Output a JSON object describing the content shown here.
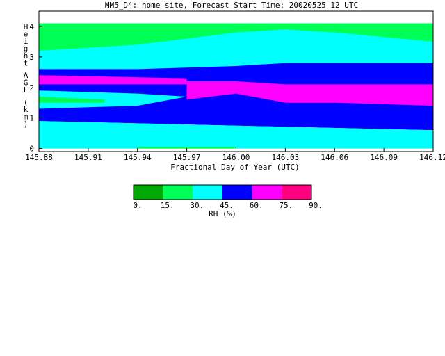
{
  "chart_data": {
    "type": "heatmap",
    "title": "MM5_D4: home site,  Forecast Start Time: 20020525 12 UTC",
    "xlabel": "Fractional Day of Year (UTC)",
    "ylabel": "Height AGL (km)",
    "xlim": [
      145.88,
      146.12
    ],
    "ylim": [
      -0.1,
      4.5
    ],
    "x_ticks": [
      "145.88",
      "145.91",
      "145.94",
      "145.97",
      "146.00",
      "146.03",
      "146.06",
      "146.09",
      "146.12"
    ],
    "y_ticks": [
      "0",
      "1",
      "2",
      "3",
      "4"
    ],
    "colorbar": {
      "label": "RH (%)",
      "ticks": [
        "0.",
        "15.",
        "30.",
        "45.",
        "60.",
        "75.",
        "90."
      ],
      "colors": [
        "#00a800",
        "#00ff55",
        "#00ffff",
        "#0000ff",
        "#ff00ff",
        "#ff0080"
      ]
    },
    "bands": [
      {
        "rh": "45-60",
        "color": "#0000ff",
        "x": [
          145.88,
          146.12
        ],
        "y_bottom": [
          0.9,
          0.6
        ],
        "y_top": [
          4.1,
          4.1
        ]
      },
      {
        "rh": "30-45",
        "color": "#00ffff",
        "x": [
          145.88,
          146.12
        ],
        "y_bottom": [
          0.0,
          0.0
        ],
        "y_top": [
          0.9,
          0.6
        ]
      },
      {
        "rh": "30-45",
        "color": "#00ffff",
        "x": [
          145.88,
          145.94,
          146.0,
          146.03,
          146.06,
          146.12
        ],
        "y_bottom": [
          2.6,
          2.6,
          2.7,
          2.8,
          2.8,
          2.8
        ],
        "y_top": [
          4.1,
          4.1,
          4.1,
          4.1,
          4.1,
          4.1
        ]
      },
      {
        "rh": "15-30",
        "color": "#00ff55",
        "x": [
          145.88,
          145.94,
          146.0,
          146.03,
          146.06,
          146.12
        ],
        "y_bottom": [
          3.2,
          3.4,
          3.8,
          3.9,
          3.8,
          3.5
        ],
        "y_top": [
          4.1,
          4.1,
          4.1,
          4.1,
          4.1,
          4.1
        ]
      },
      {
        "rh": "30-45",
        "color": "#00ffff",
        "x": [
          145.88,
          145.94,
          145.97
        ],
        "y_bottom": [
          1.3,
          1.4,
          1.7
        ],
        "y_top": [
          1.9,
          1.8,
          1.7
        ]
      },
      {
        "rh": "15-30",
        "color": "#00ff55",
        "x": [
          145.88,
          145.92
        ],
        "y_bottom": [
          1.5,
          1.5
        ],
        "y_top": [
          1.7,
          1.6
        ]
      },
      {
        "rh": "60-75",
        "color": "#ff00ff",
        "x": [
          145.88,
          145.97
        ],
        "y_bottom": [
          2.1,
          2.1
        ],
        "y_top": [
          2.4,
          2.3
        ]
      },
      {
        "rh": "60-75",
        "color": "#ff00ff",
        "x": [
          145.97,
          146.0,
          146.03,
          146.06,
          146.12
        ],
        "y_bottom": [
          1.6,
          1.8,
          1.5,
          1.5,
          1.4
        ],
        "y_top": [
          2.2,
          2.2,
          2.1,
          2.1,
          2.1
        ]
      },
      {
        "rh": "15-30",
        "color": "#00ff55",
        "x": [
          145.94,
          146.0
        ],
        "y_bottom": [
          0.0,
          0.0
        ],
        "y_top": [
          0.05,
          0.05
        ]
      }
    ]
  }
}
